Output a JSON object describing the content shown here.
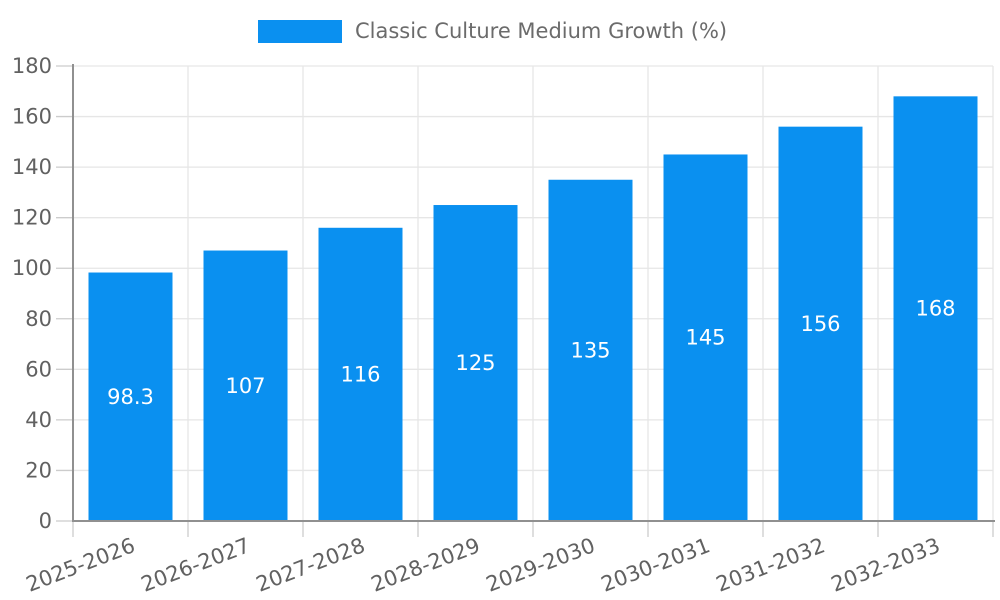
{
  "chart_data": {
    "type": "bar",
    "title": "",
    "legend": "Classic Culture Medium Growth (%)",
    "legend_position": "top-center",
    "categories": [
      "2025-2026",
      "2026-2027",
      "2027-2028",
      "2028-2029",
      "2029-2030",
      "2030-2031",
      "2031-2032",
      "2032-2033"
    ],
    "values": [
      98.3,
      107,
      116,
      125,
      135,
      145,
      156,
      168
    ],
    "ylabel": "",
    "xlabel": "",
    "ylim": [
      0,
      180
    ],
    "ytick_step": 20,
    "ytick_labels": [
      "0",
      "20",
      "40",
      "60",
      "80",
      "100",
      "120",
      "140",
      "160",
      "180"
    ],
    "grid": true,
    "x_label_rotation_deg": -21,
    "bar_color": "#0a90f0",
    "bar_label_color": "#ffffff",
    "axis_line_color": "#909090",
    "grid_color": "#e6e6e6",
    "tick_color": "#cccccc",
    "axis_text_color": "#616161",
    "legend_text_color": "#6b6b6b"
  }
}
